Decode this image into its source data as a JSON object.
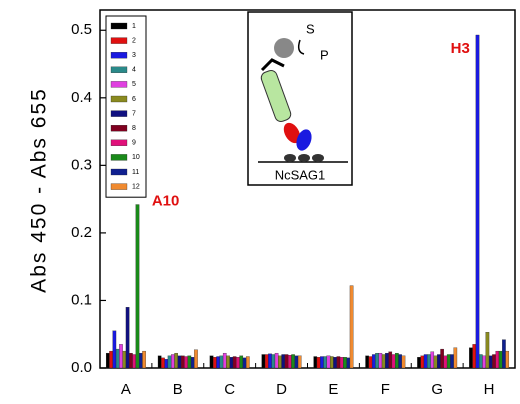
{
  "chart_data": {
    "type": "bar",
    "y_label": "Abs 450 - Abs 655",
    "categories": [
      "A",
      "B",
      "C",
      "D",
      "E",
      "F",
      "G",
      "H"
    ],
    "series": [
      {
        "name": "1",
        "color": "#000000",
        "values": [
          0.022,
          0.018,
          0.018,
          0.02,
          0.017,
          0.018,
          0.016,
          0.03
        ]
      },
      {
        "name": "2",
        "color": "#e01010",
        "values": [
          0.025,
          0.015,
          0.016,
          0.02,
          0.016,
          0.017,
          0.018,
          0.035
        ]
      },
      {
        "name": "3",
        "color": "#1a1ae0",
        "values": [
          0.055,
          0.013,
          0.017,
          0.021,
          0.017,
          0.02,
          0.02,
          0.493
        ]
      },
      {
        "name": "4",
        "color": "#2a8a8a",
        "values": [
          0.028,
          0.018,
          0.018,
          0.02,
          0.017,
          0.022,
          0.02,
          0.02
        ]
      },
      {
        "name": "5",
        "color": "#e040e0",
        "values": [
          0.035,
          0.02,
          0.022,
          0.022,
          0.018,
          0.022,
          0.024,
          0.018
        ]
      },
      {
        "name": "6",
        "color": "#8a8a20",
        "values": [
          0.025,
          0.022,
          0.018,
          0.018,
          0.017,
          0.02,
          0.018,
          0.053
        ]
      },
      {
        "name": "7",
        "color": "#101080",
        "values": [
          0.09,
          0.018,
          0.016,
          0.02,
          0.016,
          0.022,
          0.02,
          0.018
        ]
      },
      {
        "name": "8",
        "color": "#800020",
        "values": [
          0.022,
          0.018,
          0.017,
          0.02,
          0.017,
          0.024,
          0.028,
          0.02
        ]
      },
      {
        "name": "9",
        "color": "#e0107a",
        "values": [
          0.02,
          0.017,
          0.016,
          0.019,
          0.016,
          0.02,
          0.018,
          0.025
        ]
      },
      {
        "name": "10",
        "color": "#1a8a1a",
        "values": [
          0.242,
          0.018,
          0.018,
          0.02,
          0.016,
          0.022,
          0.02,
          0.025
        ]
      },
      {
        "name": "11",
        "color": "#102090",
        "values": [
          0.022,
          0.016,
          0.015,
          0.018,
          0.015,
          0.02,
          0.02,
          0.042
        ]
      },
      {
        "name": "12",
        "color": "#f08a30",
        "values": [
          0.025,
          0.027,
          0.017,
          0.018,
          0.122,
          0.018,
          0.03,
          0.025
        ]
      }
    ],
    "annotations": [
      {
        "text": "A10",
        "category": 0,
        "series": 9
      },
      {
        "text": "H3",
        "category": 7,
        "series": 2
      }
    ],
    "inset_labels": [
      "S",
      "P",
      "NcSAG1"
    ],
    "ylim": [
      0,
      0.53
    ],
    "yticks": [
      {
        "value": 0,
        "label": "0.0"
      },
      0.1,
      0.2,
      0.3,
      0.4,
      0.5
    ]
  }
}
